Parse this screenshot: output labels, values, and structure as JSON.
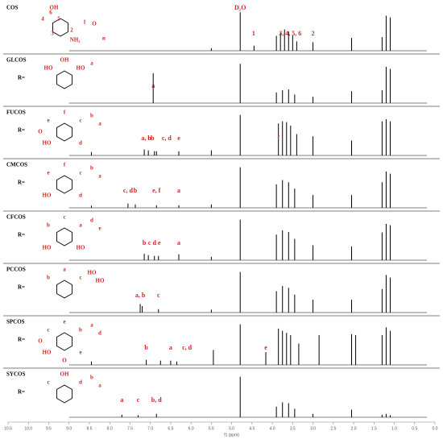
{
  "chart_data": {
    "type": "nmr",
    "xlabel": "f1 (ppm)",
    "xlim": [
      10.5,
      0
    ],
    "xticks": [
      10.5,
      {
        "value": 10,
        "label": "10.0"
      },
      9.5,
      {
        "value": 9,
        "label": "9.0"
      },
      8.5,
      {
        "value": 8,
        "label": "8.0"
      },
      7.5,
      {
        "value": 7,
        "label": "7.0"
      },
      6.5,
      {
        "value": 6,
        "label": "6.0"
      },
      5.5,
      {
        "value": 5,
        "label": "5.0"
      },
      4.5,
      {
        "value": 4,
        "label": "4.0"
      },
      3.5,
      {
        "value": 3,
        "label": "3.0"
      },
      2.5,
      {
        "value": 2,
        "label": "2.0"
      },
      1.5,
      {
        "value": 1,
        "label": "1.0"
      },
      0.5,
      {
        "value": 0,
        "label": "0.0"
      }
    ],
    "color": "#000000",
    "panels": [
      {
        "name": "COS",
        "structure_labels": [
          "OH",
          "4",
          "6",
          "5",
          "1",
          "3",
          "2",
          "NH₂",
          "O",
          "n"
        ],
        "annotations": [
          {
            "text": "D₂O",
            "ppm": 4.79
          },
          {
            "text": "1",
            "ppm": 4.46
          },
          {
            "text": "3, 4, 5, 6",
            "ppm": 3.56
          },
          {
            "text": "2",
            "ppm": 3.0
          }
        ],
        "peaks": {
          "ppm": [
            5.5,
            4.79,
            4.45,
            3.9,
            3.8,
            3.7,
            3.6,
            3.5,
            3.4,
            3.0,
            2.05,
            1.3,
            1.2,
            1.1
          ],
          "height": [
            0.06,
            0.9,
            0.12,
            0.35,
            0.42,
            0.5,
            0.45,
            0.36,
            0.22,
            0.2,
            0.3,
            0.32,
            0.82,
            0.78
          ]
        }
      },
      {
        "name": "GLCOS",
        "r_label": "R=",
        "structure_labels": [
          "OH",
          "HO",
          "HO",
          "a"
        ],
        "annotations": [
          {
            "text": "a",
            "ppm": 6.93
          }
        ],
        "peaks": {
          "ppm": [
            6.93,
            4.79,
            3.9,
            3.75,
            3.6,
            3.45,
            3.0,
            2.05,
            1.3,
            1.2,
            1.1
          ],
          "height": [
            0.7,
            0.92,
            0.25,
            0.3,
            0.32,
            0.2,
            0.15,
            0.28,
            0.3,
            0.85,
            0.8
          ]
        }
      },
      {
        "name": "FUCOS",
        "r_label": "R=",
        "structure_labels": [
          "f",
          "e",
          "c",
          "b",
          "a",
          "d",
          "HO",
          "O"
        ],
        "annotations": [
          {
            "text": "a, b",
            "ppm": 7.1
          },
          {
            "text": "b",
            "ppm": 6.95
          },
          {
            "text": "c, d",
            "ppm": 6.6
          },
          {
            "text": "e",
            "ppm": 6.3
          },
          {
            "text": "f",
            "ppm": 3.85
          }
        ],
        "peaks": {
          "ppm": [
            8.45,
            7.15,
            7.05,
            6.9,
            6.85,
            6.3,
            5.5,
            4.79,
            3.85,
            3.75,
            3.65,
            3.55,
            3.4,
            3.0,
            2.05,
            1.3,
            1.2,
            1.1
          ],
          "height": [
            0.08,
            0.14,
            0.12,
            0.1,
            0.1,
            0.1,
            0.12,
            0.95,
            0.75,
            0.8,
            0.78,
            0.7,
            0.5,
            0.45,
            0.35,
            0.8,
            0.85,
            0.8
          ]
        }
      },
      {
        "name": "CMCOS",
        "r_label": "R=",
        "structure_labels": [
          "f",
          "e",
          "c",
          "b",
          "a",
          "d",
          "HO"
        ],
        "annotations": [
          {
            "text": "c, d",
            "ppm": 7.55
          },
          {
            "text": "b",
            "ppm": 7.37
          },
          {
            "text": "e, f",
            "ppm": 6.85
          },
          {
            "text": "a",
            "ppm": 6.3
          }
        ],
        "peaks": {
          "ppm": [
            8.45,
            7.55,
            7.37,
            6.85,
            6.3,
            5.5,
            4.79,
            3.9,
            3.75,
            3.6,
            3.45,
            3.0,
            2.05,
            1.3,
            1.2,
            1.1
          ],
          "height": [
            0.05,
            0.1,
            0.08,
            0.06,
            0.06,
            0.08,
            0.95,
            0.55,
            0.65,
            0.6,
            0.45,
            0.3,
            0.3,
            0.6,
            0.85,
            0.8
          ]
        }
      },
      {
        "name": "CFCOS",
        "r_label": "R=",
        "structure_labels": [
          "c",
          "b",
          "a",
          "d",
          "e",
          "HO",
          "HO"
        ],
        "annotations": [
          {
            "text": "b",
            "ppm": 7.15
          },
          {
            "text": "c",
            "ppm": 7.02
          },
          {
            "text": "d",
            "ppm": 6.9
          },
          {
            "text": "e",
            "ppm": 6.78
          },
          {
            "text": "a",
            "ppm": 6.3
          }
        ],
        "peaks": {
          "ppm": [
            7.15,
            7.05,
            6.9,
            6.8,
            6.3,
            5.5,
            4.79,
            3.9,
            3.75,
            3.6,
            3.45,
            3.0,
            2.05,
            1.3,
            1.2,
            1.1
          ],
          "height": [
            0.15,
            0.12,
            0.1,
            0.1,
            0.14,
            0.08,
            0.95,
            0.6,
            0.7,
            0.66,
            0.5,
            0.35,
            0.32,
            0.65,
            0.85,
            0.82
          ]
        }
      },
      {
        "name": "PCCOS",
        "r_label": "R=",
        "structure_labels": [
          "a",
          "b",
          "c",
          "HO",
          "HO"
        ],
        "annotations": [
          {
            "text": "a, b",
            "ppm": 7.25
          },
          {
            "text": "c",
            "ppm": 6.8
          }
        ],
        "peaks": {
          "ppm": [
            7.25,
            7.2,
            6.8,
            5.5,
            4.79,
            3.9,
            3.75,
            3.6,
            3.45,
            3.0,
            2.05,
            1.3,
            1.2,
            1.1
          ],
          "height": [
            0.2,
            0.15,
            0.08,
            0.07,
            0.95,
            0.5,
            0.62,
            0.58,
            0.42,
            0.3,
            0.3,
            0.55,
            0.88,
            0.82
          ]
        }
      },
      {
        "name": "SPCOS",
        "r_label": "R=",
        "structure_labels": [
          "e",
          "c",
          "b",
          "a",
          "d",
          "e",
          "HO",
          "O",
          "O"
        ],
        "annotations": [
          {
            "text": "b",
            "ppm": 7.1
          },
          {
            "text": "a",
            "ppm": 6.5
          },
          {
            "text": "c, d",
            "ppm": 6.1
          },
          {
            "text": "e",
            "ppm": 4.16
          }
        ],
        "peaks": {
          "ppm": [
            8.45,
            7.1,
            6.75,
            6.5,
            6.35,
            5.45,
            4.79,
            4.16,
            3.85,
            3.75,
            3.65,
            3.55,
            3.35,
            2.85,
            2.05,
            1.95,
            1.3,
            1.2,
            1.1
          ],
          "height": [
            0.08,
            0.12,
            0.1,
            0.1,
            0.08,
            0.35,
            0.95,
            0.3,
            0.85,
            0.8,
            0.75,
            0.7,
            0.5,
            0.7,
            0.72,
            0.7,
            0.7,
            0.88,
            0.8
          ]
        }
      },
      {
        "name": "SYCOS",
        "r_label": "R=",
        "structure_labels": [
          "OH",
          "c",
          "d",
          "b",
          "a"
        ],
        "annotations": [
          {
            "text": "a",
            "ppm": 7.7
          },
          {
            "text": "c",
            "ppm": 7.3
          },
          {
            "text": "b, d",
            "ppm": 6.85
          }
        ],
        "peaks": {
          "ppm": [
            7.7,
            7.3,
            6.85,
            4.79,
            3.9,
            3.75,
            3.6,
            3.45,
            3.0,
            2.05,
            1.3,
            1.2,
            1.1
          ],
          "height": [
            0.06,
            0.05,
            0.08,
            0.95,
            0.25,
            0.35,
            0.33,
            0.2,
            0.08,
            0.18,
            0.06,
            0.08,
            0.05
          ]
        }
      }
    ]
  }
}
